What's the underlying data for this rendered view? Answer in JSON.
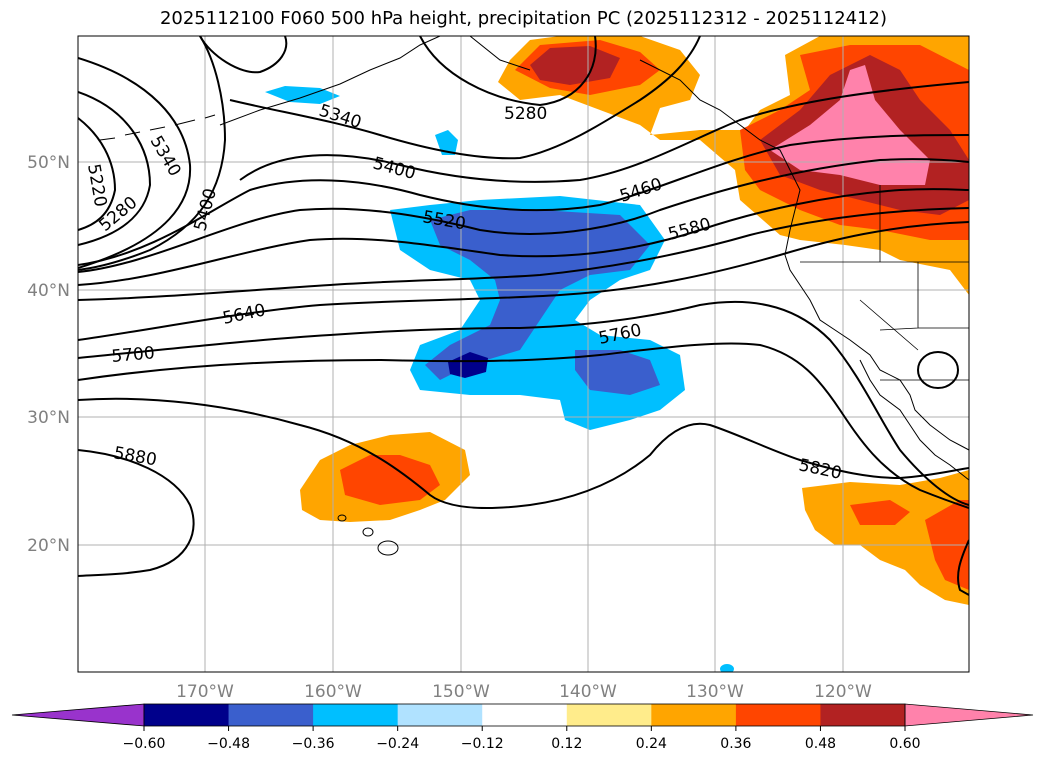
{
  "title": "2025112100 F060 500 hPa height, precipitation PC (2025112312 - 2025112412)",
  "map": {
    "lon_labels": [
      "170°W",
      "160°W",
      "150°W",
      "140°W",
      "130°W",
      "120°W"
    ],
    "lat_labels": [
      "50°N",
      "40°N",
      "30°N",
      "20°N"
    ],
    "contour_labels": [
      "5220",
      "5280",
      "5340",
      "5280",
      "5340",
      "5400",
      "5400",
      "5460",
      "5520",
      "5580",
      "5640",
      "5700",
      "5760",
      "5820",
      "5880"
    ],
    "colors": {
      "land_coast": "#000000",
      "contour": "#000000",
      "grid": "#b0b0b0"
    }
  },
  "colorbar": {
    "ticks": [
      "−0.60",
      "−0.48",
      "−0.36",
      "−0.24",
      "−0.12",
      "0.12",
      "0.24",
      "0.36",
      "0.48",
      "0.60"
    ],
    "colors": [
      "#9933cc",
      "#00008b",
      "#3a5fcd",
      "#00bfff",
      "#b0e2ff",
      "#ffffff",
      "#ffec8b",
      "#ffa500",
      "#ff4500",
      "#b22222",
      "#ff82ab",
      "#ff82ab"
    ]
  }
}
